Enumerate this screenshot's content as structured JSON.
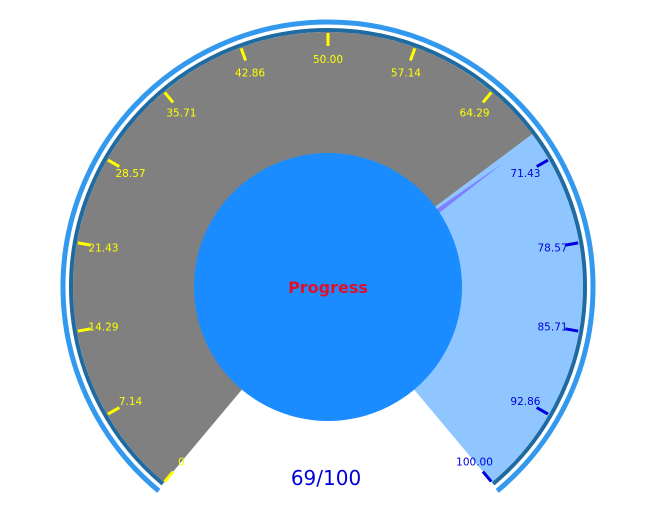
{
  "chart_data": {
    "type": "gauge",
    "min": 0,
    "max": 100,
    "value": 69,
    "center_label": "Progress",
    "value_label": "69/100",
    "tick_labels": [
      "0",
      "7.14",
      "14.29",
      "21.43",
      "28.57",
      "35.71",
      "42.86",
      "50.00",
      "57.14",
      "64.29",
      "71.43",
      "78.57",
      "85.71",
      "92.86",
      "100.00"
    ],
    "tick_values": [
      0,
      7.14,
      14.29,
      21.43,
      28.57,
      35.71,
      42.86,
      50,
      57.14,
      64.29,
      71.43,
      78.57,
      85.71,
      92.86,
      100
    ],
    "colors": {
      "filled": "#808080",
      "remaining": "#8fc6ff",
      "needle": "#8080ff",
      "center_disc": "#1a8cff",
      "outer_ring": "#3399ee",
      "inner_ring": "#1f6aa0",
      "ticks_filled": "#ffff00",
      "ticks_remaining": "#0000dd",
      "center_label": "#e0102a",
      "value_label": "#0000dd"
    }
  }
}
